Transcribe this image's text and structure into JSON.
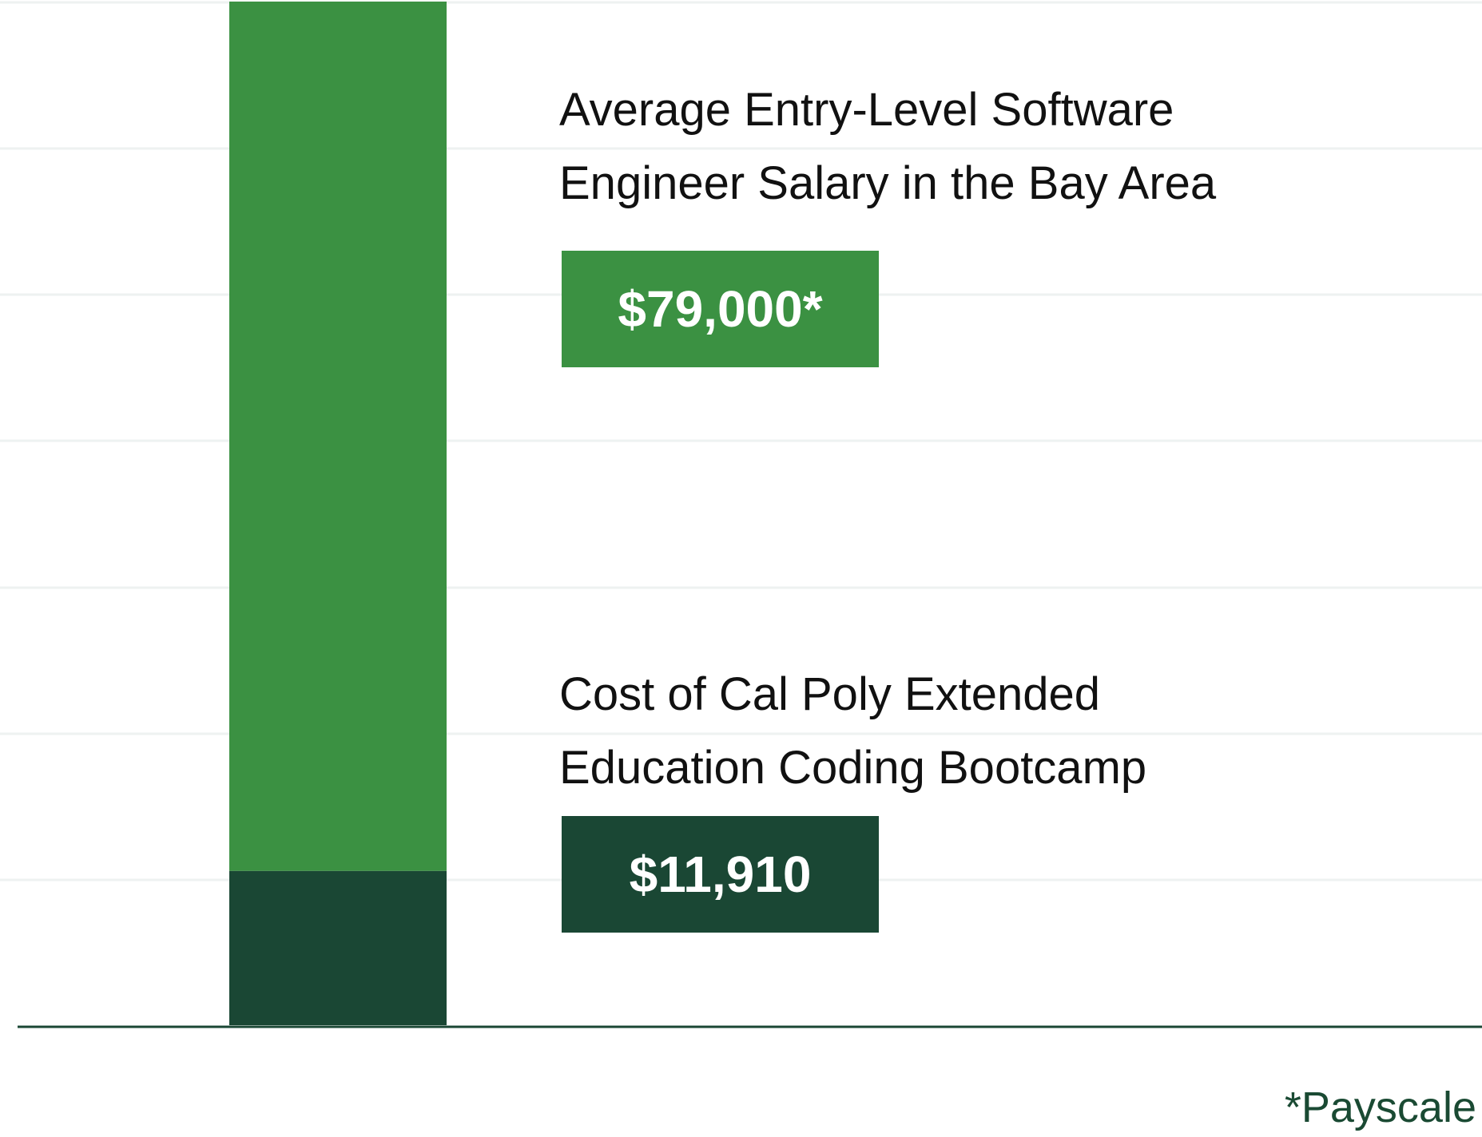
{
  "chart_data": {
    "type": "bar",
    "stacked": true,
    "categories": [
      ""
    ],
    "series": [
      {
        "name": "Cost of Cal Poly Extended Education Coding Bootcamp",
        "values": [
          11910
        ],
        "value_label": "$11,910",
        "color": "#1a4734"
      },
      {
        "name": "Average Entry-Level Software Engineer Salary in the Bay Area",
        "values": [
          67090
        ],
        "total_value": 79000,
        "value_label": "$79,000*",
        "color": "#3b9142"
      }
    ],
    "title": "",
    "xlabel": "",
    "ylabel": "",
    "ylim": [
      0,
      79000
    ],
    "grid": true,
    "axis_color": "#1a4734",
    "grid_color": "#eef2f1"
  },
  "annotations": {
    "salary_caption": "Average Entry-Level Software\nEngineer Salary in the Bay Area",
    "salary_value": "$79,000*",
    "bootcamp_caption": "Cost of Cal Poly Extended\nEducation Coding Bootcamp",
    "bootcamp_value": "$11,910",
    "source_note": "*Payscale"
  }
}
